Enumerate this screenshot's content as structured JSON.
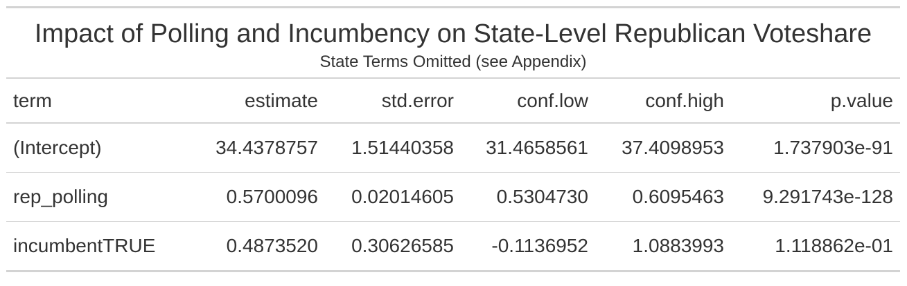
{
  "table": {
    "title": "Impact of Polling and Incumbency on State-Level Republican Voteshare",
    "subtitle": "State Terms Omitted (see Appendix)",
    "columns": [
      "term",
      "estimate",
      "std.error",
      "conf.low",
      "conf.high",
      "p.value"
    ],
    "rows": [
      [
        "(Intercept)",
        "34.4378757",
        "1.51440358",
        "31.4658561",
        "37.4098953",
        "1.737903e-91"
      ],
      [
        "rep_polling",
        "0.5700096",
        "0.02014605",
        "0.5304730",
        "0.6095463",
        "9.291743e-128"
      ],
      [
        "incumbentTRUE",
        "0.4873520",
        "0.30626585",
        "-0.1136952",
        "1.0883993",
        "1.118862e-01"
      ]
    ]
  }
}
